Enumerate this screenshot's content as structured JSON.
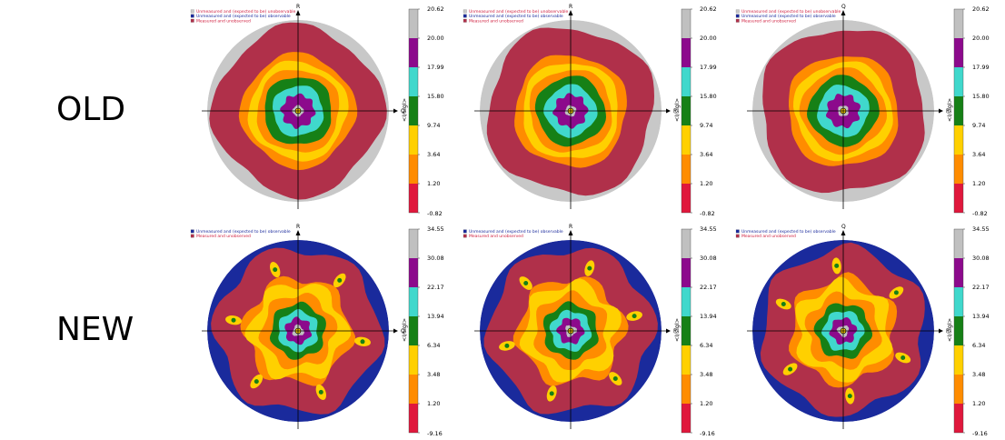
{
  "row_labels": {
    "old": "OLD",
    "new": "NEW"
  },
  "colors": {
    "unmeasured_unobservable": "#c8c8c8",
    "unmeasured_observable": "#1a2a9c",
    "measured_unobserved": "#b0304a",
    "bands": [
      "#e0183c",
      "#ff8c00",
      "#ffd000",
      "#168016",
      "#40d8cc",
      "#8c0a8c",
      "#c0c0c0"
    ]
  },
  "chart_data": [
    {
      "id": "old-1",
      "type": "heatmap",
      "row": "OLD",
      "axes": {
        "right": "Q",
        "top": "R"
      },
      "legend": [
        "Unmeasured and (expected to be) unobservable",
        "Unmeasured and (expected to be) observable",
        "Measured and unobserved"
      ],
      "colorbar": {
        "label": "<I/sigI>",
        "ticks": [
          "20.62",
          "20.00",
          "17.99",
          "15.80",
          "9.74",
          "3.64",
          "1.20",
          "-0.82"
        ]
      }
    },
    {
      "id": "old-2",
      "type": "heatmap",
      "row": "OLD",
      "axes": {
        "right": "P",
        "top": "R"
      },
      "legend": [
        "Unmeasured and (expected to be) unobservable",
        "Unmeasured and (expected to be) observable",
        "Measured and unobserved"
      ],
      "colorbar": {
        "label": "<I/sigI>",
        "ticks": [
          "20.62",
          "20.00",
          "17.99",
          "15.80",
          "9.74",
          "3.64",
          "1.20",
          "-0.82"
        ]
      }
    },
    {
      "id": "old-3",
      "type": "heatmap",
      "row": "OLD",
      "axes": {
        "right": "P",
        "top": "Q"
      },
      "legend": [
        "Unmeasured and (expected to be) unobservable",
        "Unmeasured and (expected to be) observable",
        "Measured and unobserved"
      ],
      "colorbar": {
        "label": "<I/sigI>",
        "ticks": [
          "20.62",
          "20.00",
          "17.99",
          "15.80",
          "9.74",
          "3.64",
          "1.20",
          "-0.82"
        ]
      }
    },
    {
      "id": "new-1",
      "type": "heatmap",
      "row": "NEW",
      "axes": {
        "right": "Q",
        "top": "R"
      },
      "legend": [
        "Unmeasured and (expected to be) observable",
        "Measured and unobserved"
      ],
      "colorbar": {
        "label": "<I/sigI>",
        "ticks": [
          "34.55",
          "30.08",
          "22.17",
          "13.94",
          "6.34",
          "3.48",
          "1.20",
          "-9.16"
        ]
      }
    },
    {
      "id": "new-2",
      "type": "heatmap",
      "row": "NEW",
      "axes": {
        "right": "P",
        "top": "R"
      },
      "legend": [
        "Unmeasured and (expected to be) observable",
        "Measured and unobserved"
      ],
      "colorbar": {
        "label": "<I/sigI>",
        "ticks": [
          "34.55",
          "30.08",
          "22.17",
          "13.94",
          "6.34",
          "3.48",
          "1.20",
          "-9.16"
        ]
      }
    },
    {
      "id": "new-3",
      "type": "heatmap",
      "row": "NEW",
      "axes": {
        "right": "P",
        "top": "Q"
      },
      "legend": [
        "Unmeasured and (expected to be) observable",
        "Measured and unobserved"
      ],
      "colorbar": {
        "label": "<I/sigI>",
        "ticks": [
          "34.55",
          "30.08",
          "22.17",
          "13.94",
          "6.34",
          "3.48",
          "1.20",
          "-9.16"
        ]
      }
    }
  ]
}
